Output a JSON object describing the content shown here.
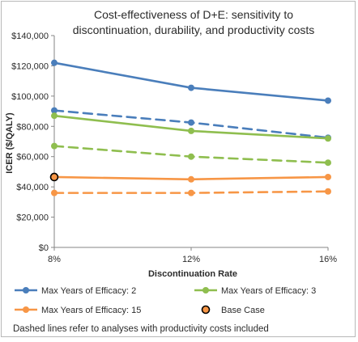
{
  "chart_data": {
    "type": "line",
    "title_lines": [
      "Cost-effectiveness of D+E: sensitivity to",
      "discontinuation, durability, and productivity costs"
    ],
    "xlabel": "Discontinuation Rate",
    "ylabel": "ICER ($/QALY)",
    "categories": [
      "8%",
      "12%",
      "16%"
    ],
    "x": [
      8,
      12,
      16
    ],
    "xlim": [
      8,
      16
    ],
    "ylim": [
      0,
      140000
    ],
    "yticks": [
      0,
      20000,
      40000,
      60000,
      80000,
      100000,
      120000,
      140000
    ],
    "ytick_labels": [
      "$0",
      "$20,000",
      "$40,000",
      "$60,000",
      "$80,000",
      "$100,000",
      "$120,000",
      "$140,000"
    ],
    "series": [
      {
        "name": "Max Years of Efficacy: 2",
        "color": "#4a7ebb",
        "dashed": false,
        "in_legend": true,
        "values": [
          122000,
          105500,
          97000
        ]
      },
      {
        "color": "#4a7ebb",
        "dashed": true,
        "in_legend": false,
        "values": [
          90500,
          82500,
          72500
        ]
      },
      {
        "name": "Max Years of Efficacy: 3",
        "color": "#8fbe4f",
        "dashed": false,
        "in_legend": true,
        "values": [
          87000,
          77000,
          72000
        ]
      },
      {
        "color": "#8fbe4f",
        "dashed": true,
        "in_legend": false,
        "values": [
          67000,
          60000,
          56000
        ]
      },
      {
        "name": "Max Years of Efficacy: 15",
        "color": "#f79646",
        "dashed": false,
        "in_legend": true,
        "values": [
          46500,
          45000,
          46500
        ]
      },
      {
        "color": "#f79646",
        "dashed": true,
        "in_legend": false,
        "values": [
          36000,
          36000,
          37000
        ]
      }
    ],
    "base_case": {
      "name": "Base Case",
      "x": 8,
      "y": 46500,
      "fill": "#f79646",
      "stroke": "#000000"
    },
    "legend_placement": "bottom",
    "grid": false,
    "footnote": "Dashed lines refer to analyses with productivity costs included"
  }
}
